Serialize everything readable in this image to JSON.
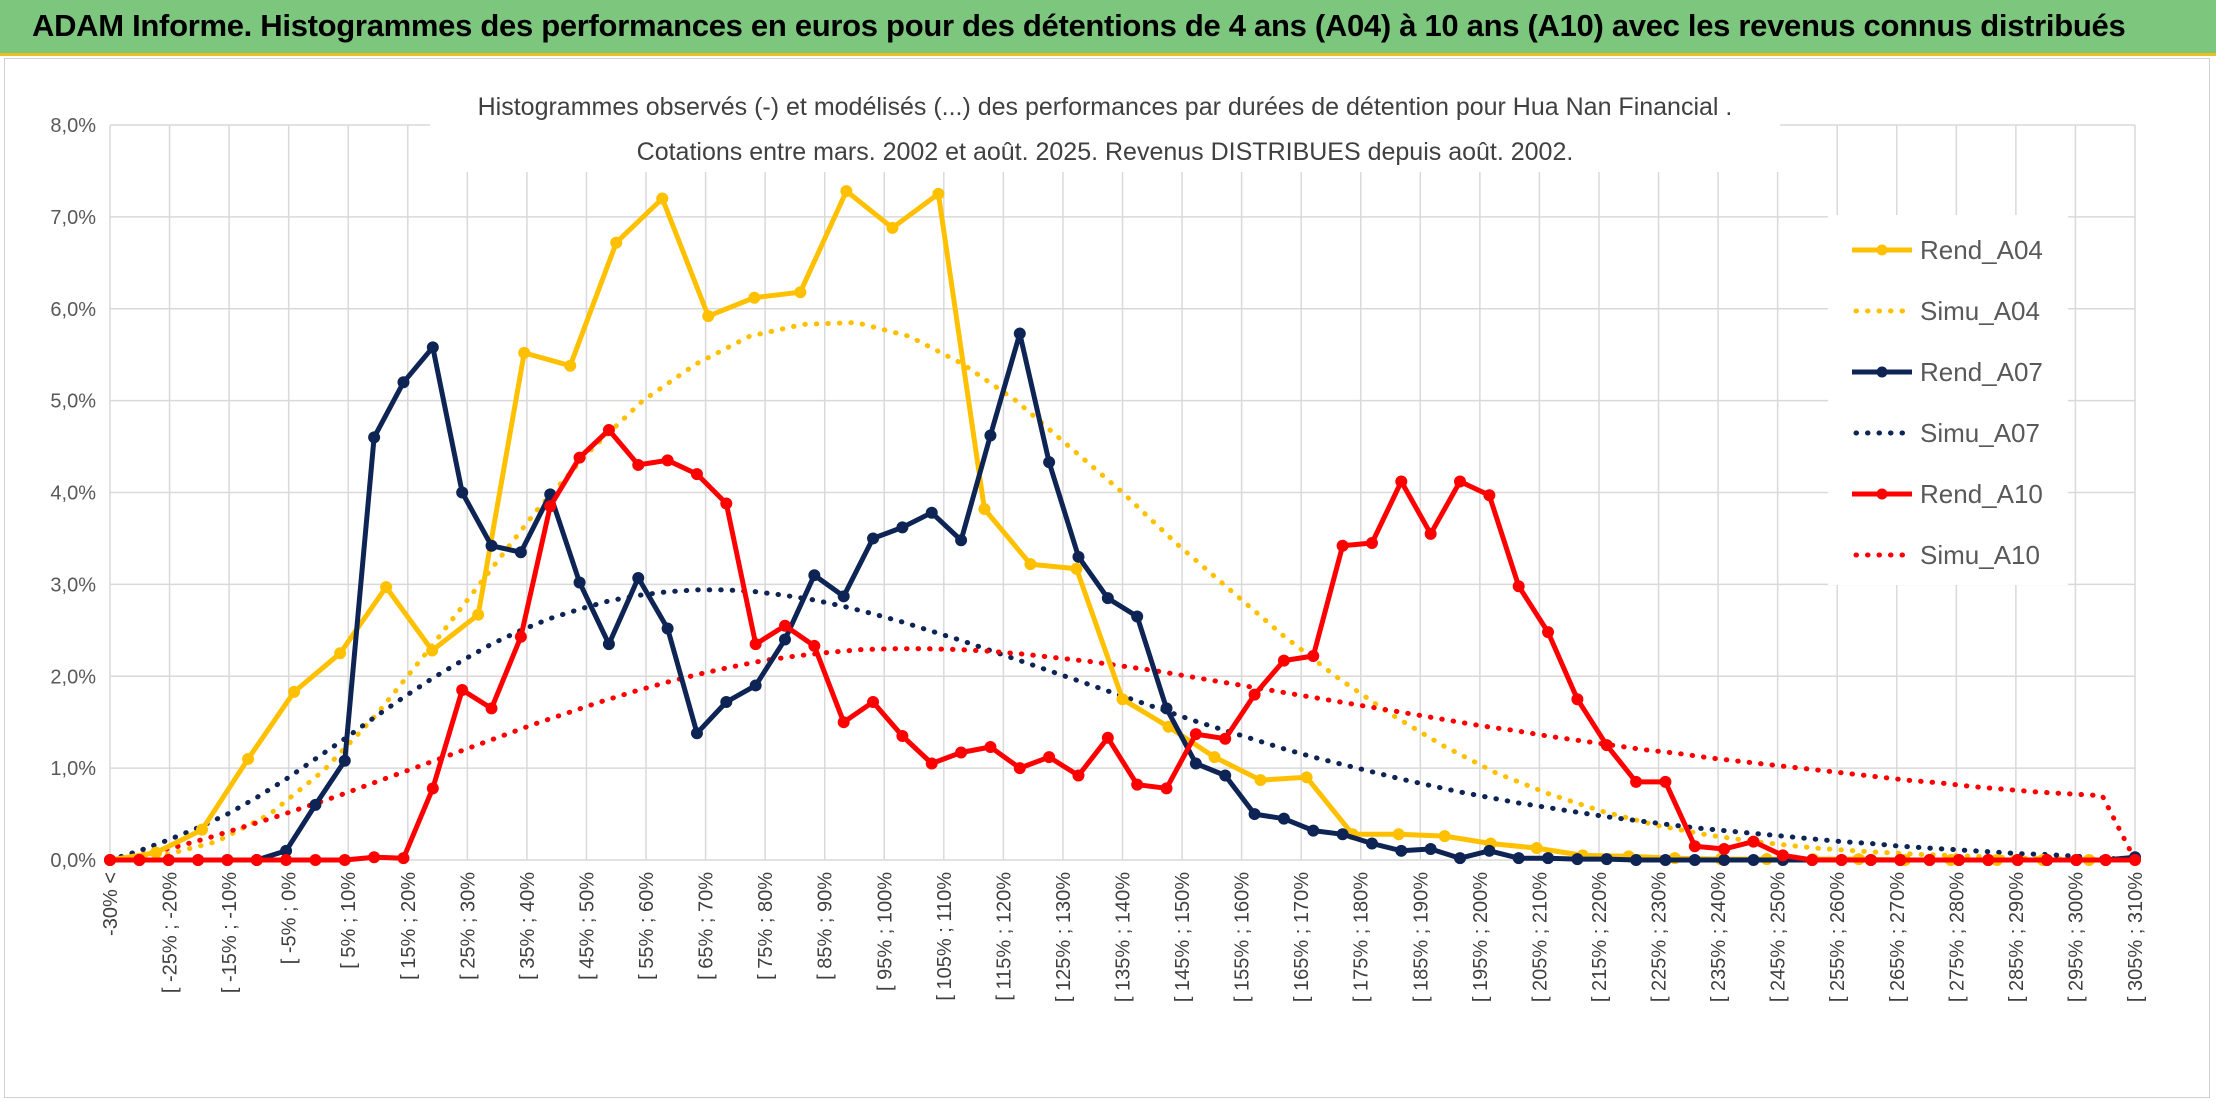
{
  "header": {
    "title": "ADAM Informe. Histogrammes des performances en euros pour des détentions de 4 ans (A04) à 10 ans (A10) avec les revenus connus distribués"
  },
  "chart_data": {
    "type": "line",
    "title_line1": "Histogrammes observés (-) et modélisés (...) des performances par durées de détention pour Hua Nan Financial .",
    "title_line2": "Cotations entre mars. 2002 et août. 2025. Revenus DISTRIBUES depuis août. 2002.",
    "ylim": [
      0,
      8
    ],
    "yticks": [
      "0,0%",
      "1,0%",
      "2,0%",
      "3,0%",
      "4,0%",
      "5,0%",
      "6,0%",
      "7,0%",
      "8,0%"
    ],
    "grid": true,
    "legend_position": "right",
    "x_labels": [
      "-30% <",
      "[ -25% ; -20%",
      "[ -15% ; -10%",
      "[ -5% ; 0%",
      "[ 5% ; 10%",
      "[ 15% ; 20%",
      "[ 25% ; 30%",
      "[ 35% ; 40%",
      "[ 45% ; 50%",
      "[ 55% ; 60%",
      "[ 65% ; 70%",
      "[ 75% ; 80%",
      "[ 85% ; 90%",
      "[ 95% ; 100%",
      "[ 105% ; 110%",
      "[ 115% ; 120%",
      "[ 125% ; 130%",
      "[ 135% ; 140%",
      "[ 145% ; 150%",
      "[ 155% ; 160%",
      "[ 165% ; 170%",
      "[ 175% ; 180%",
      "[ 185% ; 190%",
      "[ 195% ; 200%",
      "[ 205% ; 210%",
      "[ 215% ; 220%",
      "[ 225% ; 230%",
      "[ 235% ; 240%",
      "[ 245% ; 250%",
      "[ 255% ; 260%",
      "[ 265% ; 270%",
      "[ 275% ; 280%",
      "[ 285% ; 290%",
      "[ 295% ; 300%",
      "[ 305% ; 310%"
    ],
    "x_label_step": 2,
    "series": [
      {
        "name": "Rend_A04",
        "color": "#ffc000",
        "style": "solid",
        "markers": true,
        "values": [
          0,
          0.08,
          0.33,
          1.1,
          1.83,
          2.25,
          2.97,
          2.28,
          2.67,
          5.52,
          5.38,
          6.72,
          7.2,
          5.92,
          6.12,
          6.18,
          7.28,
          6.88,
          7.25,
          3.82,
          3.22,
          3.17,
          1.75,
          1.45,
          1.12,
          0.87,
          0.9,
          0.28,
          0.28,
          0.26,
          0.18,
          0.13,
          0.05,
          0.04,
          0.02,
          0.01,
          0.01,
          0.01,
          0.01,
          0.0,
          0.0,
          0.0,
          0.0,
          0.0,
          0.0
        ]
      },
      {
        "name": "Simu_A04",
        "color": "#ffc000",
        "style": "dotted",
        "values": [
          0,
          0.05,
          0.2,
          0.5,
          0.97,
          1.58,
          2.3,
          3.05,
          3.8,
          4.45,
          5.0,
          5.4,
          5.7,
          5.83,
          5.85,
          5.7,
          5.4,
          5.0,
          4.5,
          4.0,
          3.45,
          2.95,
          2.45,
          2.0,
          1.6,
          1.25,
          0.95,
          0.72,
          0.53,
          0.38,
          0.27,
          0.19,
          0.13,
          0.09,
          0.06,
          0.04,
          0.02,
          0.01,
          0.0
        ]
      },
      {
        "name": "Rend_A07",
        "color": "#0e2454",
        "style": "solid",
        "markers": true,
        "values": [
          0,
          0,
          0,
          0,
          0,
          0,
          0.1,
          0.6,
          1.08,
          4.6,
          5.2,
          5.58,
          4.0,
          3.42,
          3.35,
          3.98,
          3.02,
          2.35,
          3.07,
          2.52,
          1.38,
          1.72,
          1.9,
          2.4,
          3.1,
          2.87,
          3.5,
          3.62,
          3.78,
          3.48,
          4.62,
          5.73,
          4.33,
          3.3,
          2.85,
          2.65,
          1.65,
          1.05,
          0.92,
          0.5,
          0.45,
          0.32,
          0.28,
          0.18,
          0.1,
          0.12,
          0.02,
          0.1,
          0.02,
          0.02,
          0.01,
          0.01,
          0.0,
          0.0,
          0.0,
          0.0,
          0.0,
          0.0,
          0.0,
          0.0,
          0.0,
          0.0,
          0.0,
          0.0,
          0.0,
          0.0,
          0.0,
          0.0,
          0.0,
          0.03
        ]
      },
      {
        "name": "Simu_A07",
        "color": "#0e2454",
        "style": "dotted",
        "values": [
          0,
          0.1,
          0.22,
          0.35,
          0.5,
          0.68,
          0.88,
          1.1,
          1.32,
          1.55,
          1.77,
          1.98,
          2.17,
          2.35,
          2.5,
          2.63,
          2.73,
          2.82,
          2.88,
          2.92,
          2.94,
          2.94,
          2.92,
          2.88,
          2.83,
          2.76,
          2.68,
          2.59,
          2.49,
          2.39,
          2.28,
          2.17,
          2.06,
          1.95,
          1.84,
          1.73,
          1.62,
          1.51,
          1.41,
          1.31,
          1.21,
          1.12,
          1.04,
          0.96,
          0.88,
          0.81,
          0.74,
          0.68,
          0.62,
          0.57,
          0.52,
          0.47,
          0.43,
          0.39,
          0.35,
          0.32,
          0.29,
          0.26,
          0.23,
          0.2,
          0.18,
          0.15,
          0.13,
          0.11,
          0.09,
          0.07,
          0.06,
          0.04,
          0.02,
          0.0
        ]
      },
      {
        "name": "Rend_A10",
        "color": "#ff0000",
        "style": "solid",
        "markers": true,
        "values": [
          0,
          0,
          0,
          0,
          0,
          0,
          0,
          0,
          0,
          0.03,
          0.02,
          0.78,
          1.85,
          1.65,
          2.43,
          3.85,
          4.38,
          4.68,
          4.3,
          4.35,
          4.2,
          3.88,
          2.35,
          2.55,
          2.33,
          1.5,
          1.72,
          1.35,
          1.05,
          1.17,
          1.23,
          1.0,
          1.12,
          0.92,
          1.33,
          0.82,
          0.78,
          1.37,
          1.32,
          1.8,
          2.17,
          2.22,
          3.42,
          3.45,
          4.12,
          3.55,
          4.12,
          3.97,
          2.98,
          2.48,
          1.75,
          1.25,
          0.85,
          0.85,
          0.15,
          0.12,
          0.2,
          0.05,
          0.0,
          0.0,
          0.0,
          0.0,
          0.0,
          0.0,
          0.0,
          0.0,
          0.0,
          0.0,
          0.0,
          0.0
        ]
      },
      {
        "name": "Simu_A10",
        "color": "#ff0000",
        "style": "dotted",
        "values": [
          0,
          0.06,
          0.14,
          0.24,
          0.35,
          0.46,
          0.58,
          0.7,
          0.83,
          0.96,
          1.09,
          1.22,
          1.35,
          1.48,
          1.6,
          1.72,
          1.83,
          1.93,
          2.02,
          2.1,
          2.17,
          2.22,
          2.26,
          2.29,
          2.3,
          2.3,
          2.29,
          2.27,
          2.24,
          2.2,
          2.16,
          2.11,
          2.06,
          2.0,
          1.94,
          1.88,
          1.82,
          1.76,
          1.7,
          1.64,
          1.58,
          1.52,
          1.46,
          1.41,
          1.35,
          1.3,
          1.25,
          1.2,
          1.16,
          1.11,
          1.07,
          1.03,
          0.99,
          0.95,
          0.91,
          0.87,
          0.84,
          0.8,
          0.77,
          0.74,
          0.72,
          0.7,
          0.0
        ]
      }
    ]
  }
}
